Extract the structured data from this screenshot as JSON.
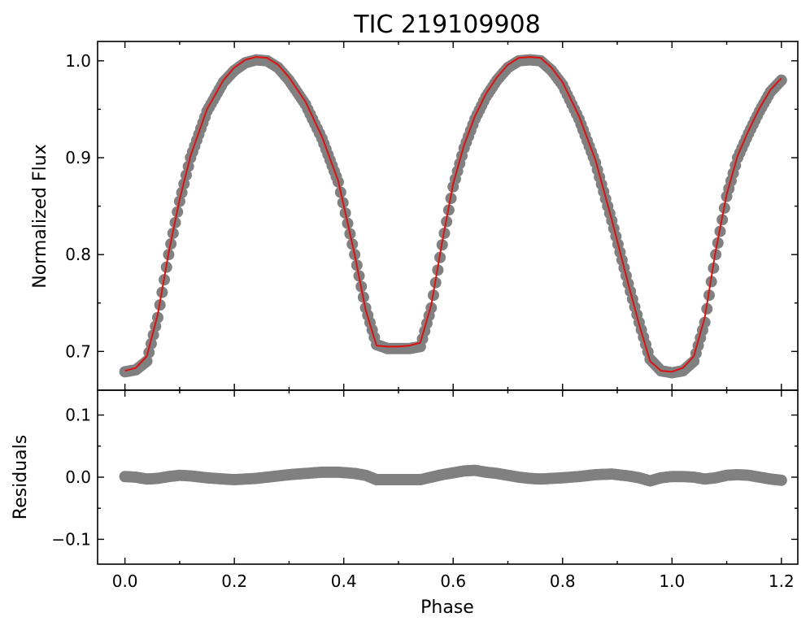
{
  "chart_data": [
    {
      "type": "scatter",
      "panel": "main",
      "title": "TIC 219109908",
      "xlabel": "",
      "ylabel": "Normalized Flux",
      "xlim": [
        -0.05,
        1.23
      ],
      "ylim": [
        0.66,
        1.02
      ],
      "x_ticks": [
        0.0,
        0.2,
        0.4,
        0.6,
        0.8,
        1.0,
        1.2
      ],
      "y_ticks": [
        0.7,
        0.8,
        0.9,
        1.0
      ],
      "y_tick_labels": [
        "0.7",
        "0.8",
        "0.9",
        "1.0"
      ],
      "x_tick_labels_visible": false,
      "minor_ticks": true,
      "tick_direction": "in",
      "grid": false,
      "series": [
        {
          "kind": "points",
          "color": "#808080",
          "x": [
            0.0,
            0.02,
            0.04,
            0.06,
            0.08,
            0.1,
            0.12,
            0.15,
            0.18,
            0.2,
            0.22,
            0.24,
            0.26,
            0.28,
            0.3,
            0.33,
            0.36,
            0.39,
            0.42,
            0.44,
            0.46,
            0.48,
            0.5,
            0.52,
            0.54,
            0.56,
            0.58,
            0.6,
            0.62,
            0.64,
            0.66,
            0.68,
            0.7,
            0.72,
            0.74,
            0.76,
            0.78,
            0.8,
            0.83,
            0.86,
            0.89,
            0.92,
            0.94,
            0.96,
            0.98,
            1.0,
            1.02,
            1.04,
            1.06,
            1.08,
            1.1,
            1.12,
            1.14,
            1.16,
            1.18,
            1.2
          ],
          "y": [
            0.679,
            0.681,
            0.69,
            0.735,
            0.8,
            0.855,
            0.9,
            0.948,
            0.978,
            0.99,
            0.998,
            1.001,
            1.0,
            0.993,
            0.98,
            0.955,
            0.92,
            0.875,
            0.8,
            0.745,
            0.707,
            0.703,
            0.703,
            0.703,
            0.705,
            0.745,
            0.81,
            0.87,
            0.91,
            0.94,
            0.963,
            0.98,
            0.993,
            1.0,
            1.001,
            1.0,
            0.99,
            0.975,
            0.94,
            0.895,
            0.835,
            0.77,
            0.73,
            0.692,
            0.68,
            0.678,
            0.68,
            0.69,
            0.73,
            0.8,
            0.86,
            0.9,
            0.925,
            0.948,
            0.968,
            0.98
          ]
        },
        {
          "kind": "line",
          "color": "#dd1111",
          "x": [
            0.0,
            0.02,
            0.04,
            0.06,
            0.08,
            0.1,
            0.12,
            0.15,
            0.18,
            0.2,
            0.22,
            0.24,
            0.26,
            0.28,
            0.3,
            0.33,
            0.36,
            0.39,
            0.42,
            0.44,
            0.46,
            0.48,
            0.5,
            0.52,
            0.54,
            0.56,
            0.58,
            0.6,
            0.62,
            0.64,
            0.66,
            0.68,
            0.7,
            0.72,
            0.74,
            0.76,
            0.78,
            0.8,
            0.83,
            0.86,
            0.89,
            0.92,
            0.94,
            0.96,
            0.98,
            1.0,
            1.02,
            1.04,
            1.06,
            1.08,
            1.1,
            1.12,
            1.14,
            1.16,
            1.18,
            1.2
          ],
          "y": [
            0.68,
            0.683,
            0.695,
            0.738,
            0.802,
            0.857,
            0.902,
            0.95,
            0.98,
            0.993,
            1.001,
            1.004,
            1.003,
            0.996,
            0.983,
            0.958,
            0.922,
            0.876,
            0.8,
            0.743,
            0.706,
            0.705,
            0.705,
            0.706,
            0.709,
            0.748,
            0.813,
            0.873,
            0.913,
            0.943,
            0.966,
            0.983,
            0.996,
            1.003,
            1.004,
            1.003,
            0.993,
            0.978,
            0.943,
            0.898,
            0.836,
            0.77,
            0.728,
            0.69,
            0.68,
            0.679,
            0.683,
            0.695,
            0.735,
            0.804,
            0.862,
            0.902,
            0.928,
            0.951,
            0.97,
            0.982
          ]
        }
      ]
    },
    {
      "type": "scatter",
      "panel": "residuals",
      "xlabel": "Phase",
      "ylabel": "Residuals",
      "xlim": [
        -0.05,
        1.23
      ],
      "ylim": [
        -0.14,
        0.14
      ],
      "x_ticks": [
        0.0,
        0.2,
        0.4,
        0.6,
        0.8,
        1.0,
        1.2
      ],
      "x_tick_labels": [
        "0.0",
        "0.2",
        "0.4",
        "0.6",
        "0.8",
        "1.0",
        "1.2"
      ],
      "y_ticks": [
        -0.1,
        0.0,
        0.1
      ],
      "y_tick_labels": [
        "−0.1",
        "0.0",
        "0.1"
      ],
      "minor_ticks": true,
      "tick_direction": "in",
      "grid": false,
      "series": [
        {
          "kind": "points",
          "color": "#808080",
          "x": [
            0.0,
            0.02,
            0.04,
            0.06,
            0.08,
            0.1,
            0.12,
            0.15,
            0.18,
            0.2,
            0.22,
            0.24,
            0.26,
            0.28,
            0.3,
            0.33,
            0.36,
            0.39,
            0.42,
            0.44,
            0.46,
            0.48,
            0.5,
            0.52,
            0.54,
            0.56,
            0.58,
            0.6,
            0.62,
            0.64,
            0.66,
            0.68,
            0.7,
            0.72,
            0.74,
            0.76,
            0.78,
            0.8,
            0.83,
            0.86,
            0.89,
            0.92,
            0.94,
            0.96,
            0.98,
            1.0,
            1.02,
            1.04,
            1.06,
            1.08,
            1.1,
            1.12,
            1.14,
            1.16,
            1.18,
            1.2
          ],
          "y": [
            0.001,
            0.0,
            -0.003,
            -0.002,
            0.001,
            0.003,
            0.002,
            -0.001,
            -0.003,
            -0.004,
            -0.003,
            -0.002,
            0.0,
            0.002,
            0.004,
            0.006,
            0.008,
            0.008,
            0.006,
            0.003,
            -0.004,
            -0.004,
            -0.004,
            -0.004,
            -0.004,
            0.0,
            0.004,
            0.007,
            0.01,
            0.011,
            0.008,
            0.006,
            0.003,
            0.0,
            -0.002,
            -0.003,
            -0.002,
            -0.001,
            0.001,
            0.004,
            0.005,
            0.002,
            -0.001,
            -0.006,
            -0.001,
            0.001,
            0.001,
            0.0,
            -0.003,
            -0.001,
            0.003,
            0.004,
            0.003,
            0.0,
            -0.003,
            -0.005
          ]
        }
      ]
    }
  ]
}
